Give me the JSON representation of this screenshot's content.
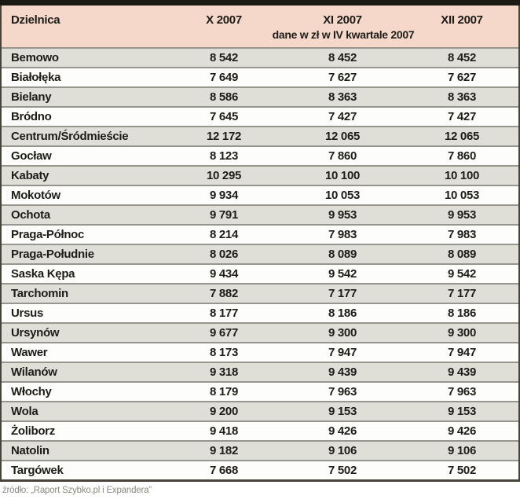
{
  "table": {
    "header": {
      "district_label": "Dzielnica",
      "columns": [
        "X 2007",
        "XI 2007",
        "XII 2007"
      ],
      "subtitle": "dane w zł w IV kwartale 2007"
    },
    "rows": [
      {
        "district": "Bemowo",
        "values": [
          "8 542",
          "8 452",
          "8 452"
        ]
      },
      {
        "district": "Białołęka",
        "values": [
          "7 649",
          "7 627",
          "7 627"
        ]
      },
      {
        "district": "Bielany",
        "values": [
          "8 586",
          "8 363",
          "8 363"
        ]
      },
      {
        "district": "Bródno",
        "values": [
          "7 645",
          "7 427",
          "7 427"
        ]
      },
      {
        "district": "Centrum/Śródmieście",
        "values": [
          "12 172",
          "12 065",
          "12 065"
        ]
      },
      {
        "district": "Gocław",
        "values": [
          "8 123",
          "7 860",
          "7 860"
        ]
      },
      {
        "district": "Kabaty",
        "values": [
          "10 295",
          "10 100",
          "10 100"
        ]
      },
      {
        "district": "Mokotów",
        "values": [
          "9 934",
          "10 053",
          "10 053"
        ]
      },
      {
        "district": "Ochota",
        "values": [
          "9 791",
          "9 953",
          "9 953"
        ]
      },
      {
        "district": "Praga-Północ",
        "values": [
          "8 214",
          "7 983",
          "7 983"
        ]
      },
      {
        "district": "Praga-Południe",
        "values": [
          "8 026",
          "8 089",
          "8 089"
        ]
      },
      {
        "district": "Saska Kępa",
        "values": [
          "9 434",
          "9 542",
          "9 542"
        ]
      },
      {
        "district": "Tarchomin",
        "values": [
          "7 882",
          "7 177",
          "7 177"
        ]
      },
      {
        "district": "Ursus",
        "values": [
          "8 177",
          "8 186",
          "8 186"
        ]
      },
      {
        "district": "Ursynów",
        "values": [
          "9 677",
          "9 300",
          "9 300"
        ]
      },
      {
        "district": "Wawer",
        "values": [
          "8 173",
          "7 947",
          "7 947"
        ]
      },
      {
        "district": "Wilanów",
        "values": [
          "9 318",
          "9 439",
          "9 439"
        ]
      },
      {
        "district": "Włochy",
        "values": [
          "8 179",
          "7 963",
          "7 963"
        ]
      },
      {
        "district": "Wola",
        "values": [
          "9 200",
          "9 153",
          "9 153"
        ]
      },
      {
        "district": "Żoliborz",
        "values": [
          "9 418",
          "9 426",
          "9 426"
        ]
      },
      {
        "district": "Natolin",
        "values": [
          "9 182",
          "9 106",
          "9 106"
        ]
      },
      {
        "district": "Targówek",
        "values": [
          "7 668",
          "7 502",
          "7 502"
        ]
      }
    ]
  },
  "footer": {
    "source": "źródło: „Raport Szybko.pl i Expandera”"
  },
  "colors": {
    "header_bg": "#f5d8c9",
    "row_alt_bg": "#dfdfd7",
    "row_plain_bg": "#fdfdfb",
    "row_separator": "#96968e",
    "outer_border": "#45433a",
    "top_bar": "#1b1a14",
    "text": "#1e1c19",
    "source_text": "#8a8a84"
  },
  "chart_data": {
    "type": "table",
    "title": "dane w zł w IV kwartale 2007",
    "columns": [
      "Dzielnica",
      "X 2007",
      "XI 2007",
      "XII 2007"
    ],
    "categories": [
      "Bemowo",
      "Białołęka",
      "Bielany",
      "Bródno",
      "Centrum/Śródmieście",
      "Gocław",
      "Kabaty",
      "Mokotów",
      "Ochota",
      "Praga-Północ",
      "Praga-Południe",
      "Saska Kępa",
      "Tarchomin",
      "Ursus",
      "Ursynów",
      "Wawer",
      "Wilanów",
      "Włochy",
      "Wola",
      "Żoliborz",
      "Natolin",
      "Targówek"
    ],
    "series": [
      {
        "name": "X 2007",
        "values": [
          8542,
          7649,
          8586,
          7645,
          12172,
          8123,
          10295,
          9934,
          9791,
          8214,
          8026,
          9434,
          7882,
          8177,
          9677,
          8173,
          9318,
          8179,
          9200,
          9418,
          9182,
          7668
        ]
      },
      {
        "name": "XI 2007",
        "values": [
          8452,
          7627,
          8363,
          7427,
          12065,
          7860,
          10100,
          10053,
          9953,
          7983,
          8089,
          9542,
          7177,
          8186,
          9300,
          7947,
          9439,
          7963,
          9153,
          9426,
          9106,
          7502
        ]
      },
      {
        "name": "XII 2007",
        "values": [
          8452,
          7627,
          8363,
          7427,
          12065,
          7860,
          10100,
          10053,
          9953,
          7983,
          8089,
          9542,
          7177,
          8186,
          9300,
          7947,
          9439,
          7963,
          9153,
          9426,
          9106,
          7502
        ]
      }
    ],
    "unit": "zł",
    "source": "źródło: „Raport Szybko.pl i Expandera”"
  }
}
